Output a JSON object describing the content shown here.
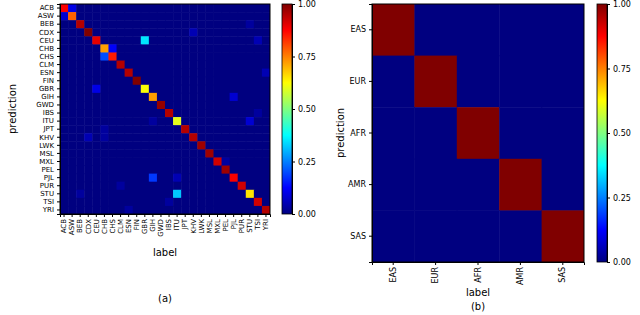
{
  "chart_data": [
    {
      "type": "heatmap",
      "title": "(a)",
      "x_label": "label",
      "y_label": "prediction",
      "categories": [
        "ACB",
        "ASW",
        "BEB",
        "CDX",
        "CEU",
        "CHB",
        "CHS",
        "CLM",
        "ESN",
        "FIN",
        "GBR",
        "GIH",
        "GWD",
        "IBS",
        "ITU",
        "JPT",
        "KHV",
        "LWK",
        "MSL",
        "MXL",
        "PEL",
        "PJL",
        "PUR",
        "STU",
        "TSI",
        "YRI"
      ],
      "cells": [
        [
          0.88,
          0.1,
          0,
          0,
          0,
          0,
          0,
          0,
          0,
          0,
          0,
          0,
          0,
          0,
          0,
          0,
          0,
          0,
          0,
          0,
          0,
          0,
          0,
          0,
          0,
          0
        ],
        [
          0.08,
          0.78,
          0,
          0,
          0,
          0,
          0,
          0,
          0,
          0,
          0,
          0,
          0,
          0,
          0,
          0,
          0,
          0,
          0,
          0,
          0,
          0,
          0,
          0,
          0,
          0
        ],
        [
          0,
          0,
          0.95,
          0,
          0,
          0,
          0,
          0,
          0,
          0,
          0,
          0,
          0,
          0,
          0,
          0,
          0,
          0,
          0,
          0,
          0,
          0,
          0,
          0.03,
          0,
          0
        ],
        [
          0,
          0,
          0,
          1,
          0,
          0,
          0,
          0,
          0,
          0,
          0,
          0,
          0,
          0,
          0,
          0,
          0.05,
          0,
          0,
          0,
          0,
          0,
          0,
          0,
          0,
          0
        ],
        [
          0,
          0,
          0,
          0,
          0.9,
          0,
          0,
          0,
          0,
          0,
          0.35,
          0,
          0,
          0,
          0,
          0,
          0,
          0,
          0,
          0,
          0,
          0,
          0,
          0,
          0.05,
          0
        ],
        [
          0,
          0,
          0,
          0,
          0,
          0.72,
          0.12,
          0,
          0,
          0,
          0,
          0,
          0,
          0,
          0,
          0,
          0,
          0,
          0,
          0,
          0,
          0,
          0,
          0,
          0,
          0
        ],
        [
          0,
          0,
          0,
          0,
          0,
          0.2,
          0.85,
          0,
          0,
          0,
          0,
          0,
          0,
          0,
          0,
          0,
          0,
          0,
          0,
          0,
          0,
          0,
          0,
          0,
          0,
          0
        ],
        [
          0,
          0,
          0,
          0,
          0,
          0,
          0,
          0.95,
          0,
          0,
          0,
          0,
          0,
          0,
          0,
          0,
          0,
          0,
          0,
          0,
          0,
          0,
          0,
          0,
          0,
          0
        ],
        [
          0,
          0,
          0,
          0,
          0,
          0,
          0,
          0,
          0.95,
          0,
          0,
          0,
          0,
          0,
          0,
          0,
          0,
          0,
          0,
          0,
          0,
          0,
          0,
          0,
          0,
          0.05
        ],
        [
          0,
          0,
          0,
          0,
          0,
          0,
          0,
          0,
          0,
          1,
          0,
          0,
          0,
          0,
          0,
          0,
          0,
          0,
          0,
          0,
          0,
          0,
          0,
          0,
          0,
          0
        ],
        [
          0,
          0,
          0,
          0,
          0.1,
          0,
          0,
          0,
          0,
          0,
          0.62,
          0,
          0,
          0,
          0,
          0,
          0,
          0,
          0,
          0,
          0,
          0,
          0,
          0,
          0,
          0
        ],
        [
          0,
          0,
          0,
          0,
          0,
          0,
          0,
          0,
          0,
          0,
          0,
          0.72,
          0,
          0,
          0,
          0,
          0,
          0,
          0,
          0,
          0,
          0.08,
          0,
          0,
          0,
          0
        ],
        [
          0,
          0,
          0,
          0,
          0,
          0,
          0,
          0,
          0,
          0,
          0,
          0,
          0.98,
          0,
          0,
          0,
          0,
          0,
          0,
          0,
          0,
          0,
          0,
          0,
          0,
          0
        ],
        [
          0,
          0,
          0,
          0,
          0,
          0,
          0,
          0,
          0,
          0,
          0,
          0,
          0,
          0.95,
          0,
          0,
          0,
          0,
          0,
          0,
          0,
          0,
          0,
          0,
          0.03,
          0
        ],
        [
          0,
          0,
          0,
          0,
          0,
          0,
          0,
          0,
          0,
          0,
          0,
          0.03,
          0,
          0,
          0.6,
          0,
          0,
          0,
          0,
          0,
          0,
          0,
          0,
          0.08,
          0,
          0
        ],
        [
          0,
          0,
          0,
          0,
          0,
          0.03,
          0,
          0,
          0,
          0,
          0,
          0,
          0,
          0,
          0,
          0.95,
          0,
          0,
          0,
          0,
          0,
          0,
          0,
          0,
          0,
          0
        ],
        [
          0,
          0,
          0,
          0.05,
          0,
          0.03,
          0,
          0,
          0,
          0,
          0,
          0,
          0,
          0,
          0,
          0,
          0.95,
          0,
          0,
          0,
          0,
          0,
          0,
          0,
          0,
          0
        ],
        [
          0,
          0,
          0,
          0,
          0,
          0,
          0,
          0,
          0,
          0,
          0,
          0,
          0,
          0,
          0,
          0,
          0,
          0.97,
          0,
          0,
          0,
          0,
          0,
          0,
          0,
          0
        ],
        [
          0,
          0,
          0,
          0,
          0,
          0,
          0,
          0,
          0,
          0,
          0,
          0,
          0,
          0,
          0,
          0,
          0,
          0,
          0.97,
          0,
          0,
          0,
          0,
          0,
          0,
          0
        ],
        [
          0,
          0,
          0,
          0,
          0,
          0,
          0,
          0,
          0,
          0,
          0,
          0,
          0,
          0,
          0,
          0,
          0,
          0,
          0,
          0.92,
          0.03,
          0,
          0,
          0,
          0,
          0
        ],
        [
          0,
          0,
          0,
          0,
          0,
          0,
          0,
          0,
          0,
          0,
          0,
          0,
          0,
          0,
          0,
          0,
          0,
          0,
          0,
          0,
          0.97,
          0,
          0,
          0,
          0,
          0
        ],
        [
          0,
          0,
          0,
          0,
          0,
          0,
          0,
          0,
          0,
          0,
          0,
          0.18,
          0,
          0,
          0.05,
          0,
          0,
          0,
          0,
          0,
          0,
          0.88,
          0,
          0,
          0,
          0
        ],
        [
          0,
          0,
          0,
          0,
          0,
          0,
          0,
          0.03,
          0,
          0,
          0,
          0,
          0,
          0,
          0,
          0,
          0,
          0,
          0,
          0,
          0,
          0,
          0.92,
          0,
          0,
          0
        ],
        [
          0,
          0,
          0.03,
          0,
          0,
          0,
          0,
          0,
          0,
          0,
          0,
          0,
          0,
          0,
          0.32,
          0,
          0,
          0,
          0,
          0,
          0,
          0,
          0,
          0.65,
          0,
          0
        ],
        [
          0,
          0,
          0,
          0,
          0,
          0,
          0,
          0,
          0,
          0,
          0,
          0,
          0,
          0.03,
          0,
          0,
          0,
          0,
          0,
          0,
          0,
          0,
          0,
          0,
          0.92,
          0
        ],
        [
          0,
          0,
          0,
          0,
          0,
          0,
          0,
          0,
          0.03,
          0,
          0,
          0,
          0,
          0,
          0,
          0,
          0,
          0,
          0,
          0,
          0,
          0,
          0,
          0,
          0,
          0.95
        ]
      ],
      "colorbar_range": [
        0,
        1
      ],
      "colorbar_ticks": [
        {
          "value": 0,
          "label": "0.00"
        },
        {
          "value": 0.25,
          "label": "0.25"
        },
        {
          "value": 0.5,
          "label": "0.50"
        },
        {
          "value": 0.75,
          "label": "0.75"
        },
        {
          "value": 1,
          "label": "1.00"
        }
      ]
    },
    {
      "type": "heatmap",
      "title": "(b)",
      "x_label": "label",
      "y_label": "prediction",
      "categories": [
        "EAS",
        "EUR",
        "AFR",
        "AMR",
        "SAS"
      ],
      "cells": [
        [
          1,
          0,
          0,
          0,
          0
        ],
        [
          0,
          1,
          0,
          0,
          0
        ],
        [
          0,
          0,
          1,
          0,
          0
        ],
        [
          0,
          0,
          0,
          1,
          0
        ],
        [
          0,
          0,
          0,
          0,
          1
        ]
      ],
      "colorbar_range": [
        0,
        1
      ],
      "colorbar_ticks": [
        {
          "value": 0,
          "label": "0.00"
        },
        {
          "value": 0.25,
          "label": "0.25"
        },
        {
          "value": 0.5,
          "label": "0.50"
        },
        {
          "value": 0.75,
          "label": "0.75"
        },
        {
          "value": 1,
          "label": "1.00"
        }
      ]
    }
  ]
}
